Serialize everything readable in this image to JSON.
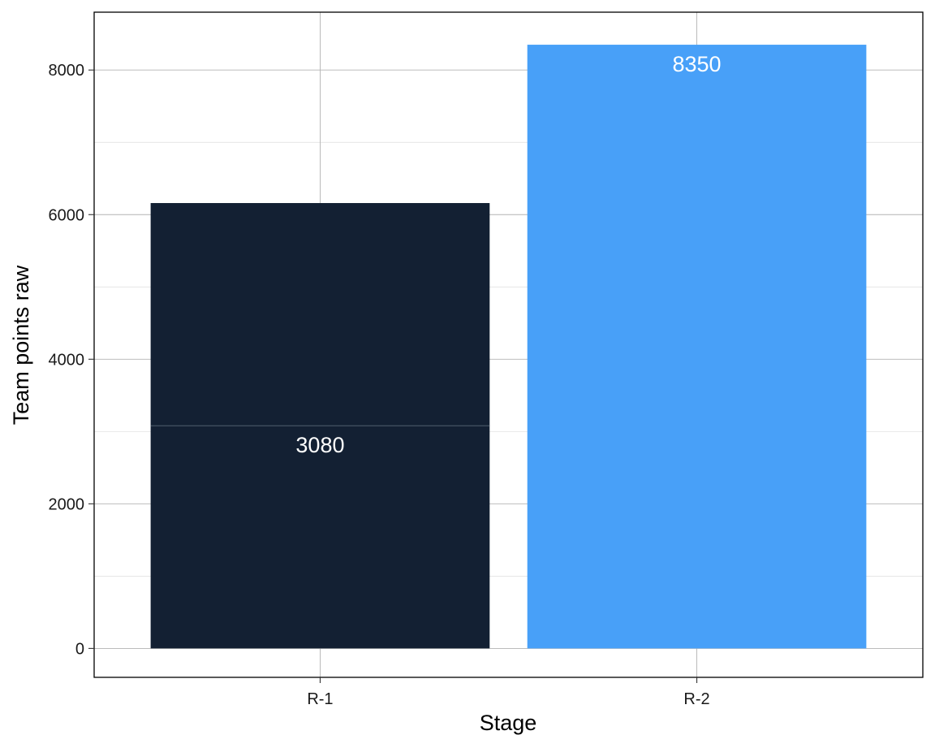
{
  "chart_data": {
    "type": "bar",
    "stacked": true,
    "xlabel": "Stage",
    "ylabel": "Team points raw",
    "categories": [
      "R-1",
      "R-2"
    ],
    "ylim": [
      -400,
      8800
    ],
    "yticks": [
      0,
      2000,
      4000,
      6000,
      8000
    ],
    "ytick_labels": [
      "0",
      "2000",
      "4000",
      "6000",
      "8000"
    ],
    "grid": true,
    "legend": "none",
    "bars": [
      {
        "category": "R-1",
        "color": "#132033",
        "segments": [
          {
            "value": 3080,
            "label": "3080"
          },
          {
            "value": 3080,
            "label": ""
          }
        ]
      },
      {
        "category": "R-2",
        "color": "#48a0f8",
        "segments": [
          {
            "value": 8350,
            "label": "8350"
          }
        ]
      }
    ]
  }
}
